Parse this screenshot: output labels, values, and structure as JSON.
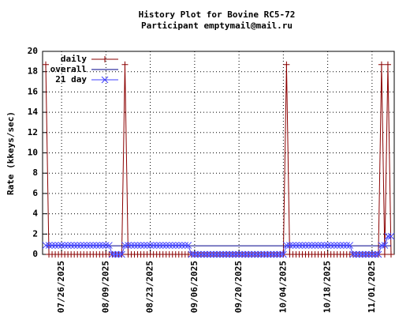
{
  "chart_data": {
    "type": "line",
    "title": "History Plot for Bovine RC5-72",
    "subtitle": "Participant emptymail@mail.ru",
    "y_label": "Rate (kkeys/sec)",
    "x": [
      "07/21/2025",
      "07/22/2025",
      "07/23/2025",
      "07/24/2025",
      "07/25/2025",
      "07/26/2025",
      "07/27/2025",
      "07/28/2025",
      "07/29/2025",
      "07/30/2025",
      "07/31/2025",
      "08/01/2025",
      "08/02/2025",
      "08/03/2025",
      "08/04/2025",
      "08/05/2025",
      "08/06/2025",
      "08/07/2025",
      "08/08/2025",
      "08/09/2025",
      "08/10/2025",
      "08/11/2025",
      "08/12/2025",
      "08/13/2025",
      "08/14/2025",
      "08/15/2025",
      "08/16/2025",
      "08/17/2025",
      "08/18/2025",
      "08/19/2025",
      "08/20/2025",
      "08/21/2025",
      "08/22/2025",
      "08/23/2025",
      "08/24/2025",
      "08/25/2025",
      "08/26/2025",
      "08/27/2025",
      "08/28/2025",
      "08/29/2025",
      "08/30/2025",
      "08/31/2025",
      "09/01/2025",
      "09/02/2025",
      "09/03/2025",
      "09/04/2025",
      "09/05/2025",
      "09/06/2025",
      "09/07/2025",
      "09/08/2025",
      "09/09/2025",
      "09/10/2025",
      "09/11/2025",
      "09/12/2025",
      "09/13/2025",
      "09/14/2025",
      "09/15/2025",
      "09/16/2025",
      "09/17/2025",
      "09/18/2025",
      "09/19/2025",
      "09/20/2025",
      "09/21/2025",
      "09/22/2025",
      "09/23/2025",
      "09/24/2025",
      "09/25/2025",
      "09/26/2025",
      "09/27/2025",
      "09/28/2025",
      "09/29/2025",
      "09/30/2025",
      "10/01/2025",
      "10/02/2025",
      "10/03/2025",
      "10/04/2025",
      "10/05/2025",
      "10/06/2025",
      "10/07/2025",
      "10/08/2025",
      "10/09/2025",
      "10/10/2025",
      "10/11/2025",
      "10/12/2025",
      "10/13/2025",
      "10/14/2025",
      "10/15/2025",
      "10/16/2025",
      "10/17/2025",
      "10/18/2025",
      "10/19/2025",
      "10/20/2025",
      "10/21/2025",
      "10/22/2025",
      "10/23/2025",
      "10/24/2025",
      "10/25/2025",
      "10/26/2025",
      "10/27/2025",
      "10/28/2025",
      "10/29/2025",
      "10/30/2025",
      "10/31/2025",
      "11/01/2025",
      "11/02/2025",
      "11/03/2025",
      "11/04/2025",
      "11/05/2025",
      "11/06/2025",
      "11/07/2025"
    ],
    "series": [
      {
        "name": "daily",
        "color": "#8b0000",
        "marker": "plus",
        "values": [
          18.7,
          0,
          0,
          0,
          0,
          0,
          0,
          0,
          0,
          0,
          0,
          0,
          0,
          0,
          0,
          0,
          0,
          0,
          0,
          0,
          0,
          0,
          0,
          0,
          0,
          18.7,
          0,
          0,
          0,
          0,
          0,
          0,
          0,
          0,
          0,
          0,
          0,
          0,
          0,
          0,
          0,
          0,
          0,
          0,
          0,
          0,
          0,
          0,
          0,
          0,
          0,
          0,
          0,
          0,
          0,
          0,
          0,
          0,
          0,
          0,
          0,
          0,
          0,
          0,
          0,
          0,
          0,
          0,
          0,
          0,
          0,
          0,
          0,
          0,
          0,
          0,
          18.7,
          0,
          0,
          0,
          0,
          0,
          0,
          0,
          0,
          0,
          0,
          0,
          0,
          0,
          0,
          0,
          0,
          0,
          0,
          0,
          0,
          0,
          0,
          0,
          0,
          0,
          0,
          0,
          0,
          0,
          18.7,
          0,
          18.7,
          0
        ]
      },
      {
        "name": "overall",
        "color": "#00008b",
        "marker": "none",
        "values": [
          0.85,
          0.85,
          0.85,
          0.85,
          0.85,
          0.85,
          0.85,
          0.85,
          0.85,
          0.85,
          0.85,
          0.85,
          0.85,
          0.85,
          0.85,
          0.85,
          0.85,
          0.85,
          0.85,
          0.85,
          0.85,
          0.85,
          0.85,
          0.85,
          0.85,
          0.85,
          0.85,
          0.85,
          0.85,
          0.85,
          0.85,
          0.85,
          0.85,
          0.85,
          0.85,
          0.85,
          0.85,
          0.85,
          0.85,
          0.85,
          0.85,
          0.85,
          0.85,
          0.85,
          0.85,
          0.85,
          0.85,
          0.85,
          0.85,
          0.85,
          0.85,
          0.85,
          0.85,
          0.85,
          0.85,
          0.85,
          0.85,
          0.85,
          0.85,
          0.85,
          0.85,
          0.85,
          0.85,
          0.85,
          0.85,
          0.85,
          0.85,
          0.85,
          0.85,
          0.85,
          0.85,
          0.85,
          0.85,
          0.85,
          0.85,
          0.85,
          0.85,
          0.85,
          0.85,
          0.85,
          0.85,
          0.85,
          0.85,
          0.85,
          0.85,
          0.85,
          0.85,
          0.85,
          0.85,
          0.85,
          0.85,
          0.85,
          0.85,
          0.85,
          0.85,
          0.85,
          0.85,
          0.85,
          0.85,
          0.85,
          0.85,
          0.85,
          0.85,
          0.85,
          0.85,
          0.85,
          0.85,
          0.85,
          0.85,
          0.85
        ]
      },
      {
        "name": "21 day",
        "color": "#4040ff",
        "marker": "cross",
        "values": [
          0.89,
          0.89,
          0.89,
          0.89,
          0.89,
          0.89,
          0.89,
          0.89,
          0.89,
          0.89,
          0.89,
          0.89,
          0.89,
          0.89,
          0.89,
          0.89,
          0.89,
          0.89,
          0.89,
          0.89,
          0.89,
          0,
          0,
          0,
          0,
          0.89,
          0.89,
          0.89,
          0.89,
          0.89,
          0.89,
          0.89,
          0.89,
          0.89,
          0.89,
          0.89,
          0.89,
          0.89,
          0.89,
          0.89,
          0.89,
          0.89,
          0.89,
          0.89,
          0.89,
          0.89,
          0,
          0,
          0,
          0,
          0,
          0,
          0,
          0,
          0,
          0,
          0,
          0,
          0,
          0,
          0,
          0,
          0,
          0,
          0,
          0,
          0,
          0,
          0,
          0,
          0,
          0,
          0,
          0,
          0,
          0,
          0.89,
          0.89,
          0.89,
          0.89,
          0.89,
          0.89,
          0.89,
          0.89,
          0.89,
          0.89,
          0.89,
          0.89,
          0.89,
          0.89,
          0.89,
          0.89,
          0.89,
          0.89,
          0.89,
          0.89,
          0.89,
          0,
          0,
          0,
          0,
          0,
          0,
          0,
          0,
          0,
          0.89,
          0.89,
          1.78,
          1.78
        ]
      }
    ],
    "xlim": [
      "07/20/2025",
      "11/08/2025"
    ],
    "xticks": [
      "07/26/2025",
      "08/09/2025",
      "08/23/2025",
      "09/06/2025",
      "09/20/2025",
      "10/04/2025",
      "10/18/2025",
      "11/01/2025"
    ],
    "ylim": [
      0,
      20
    ],
    "yticks": [
      0,
      2,
      4,
      6,
      8,
      10,
      12,
      14,
      16,
      18,
      20
    ],
    "grid": true,
    "legend": "top-left"
  }
}
